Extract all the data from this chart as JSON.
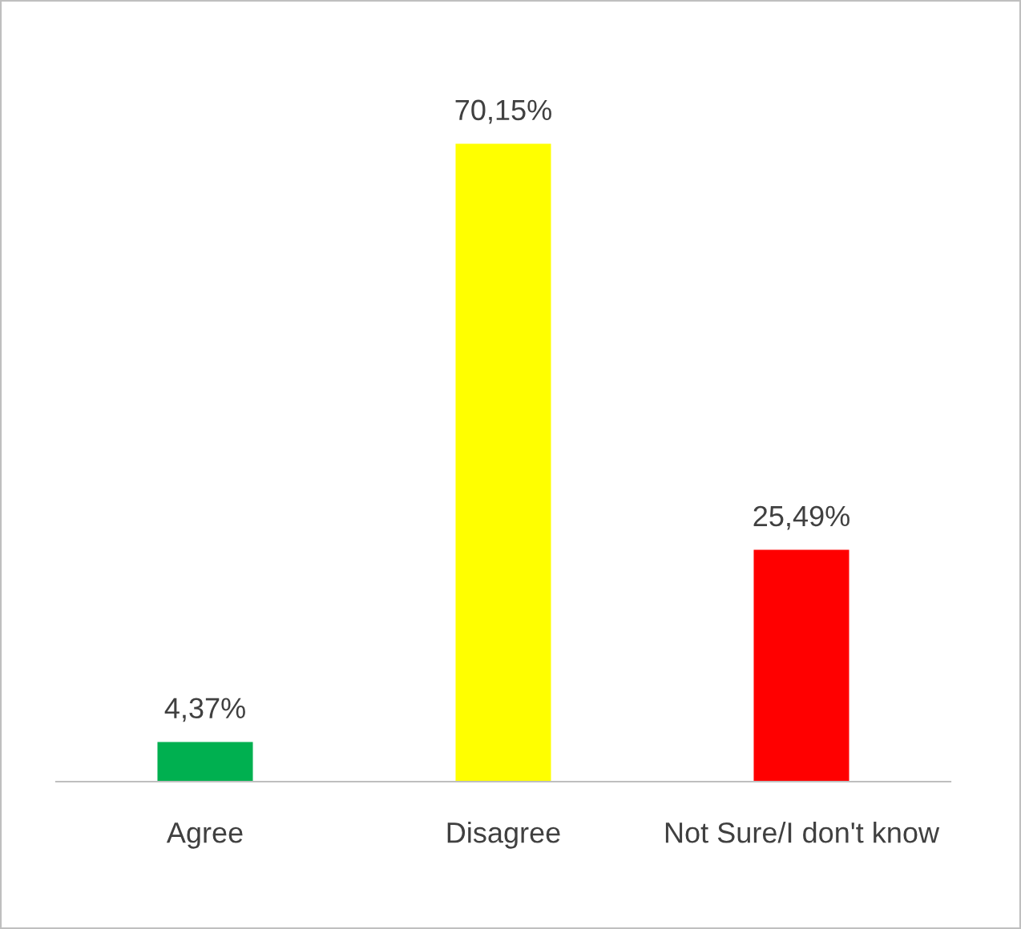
{
  "chart_data": {
    "type": "bar",
    "categories": [
      "Agree",
      "Disagree",
      "Not Sure/I don't know"
    ],
    "values": [
      4.37,
      70.15,
      25.49
    ],
    "colors": [
      "#00b050",
      "#ffff00",
      "#ff0000"
    ],
    "value_labels": [
      "4,37%",
      "70,15%",
      "25,49%"
    ],
    "grid": false,
    "legend": false
  }
}
